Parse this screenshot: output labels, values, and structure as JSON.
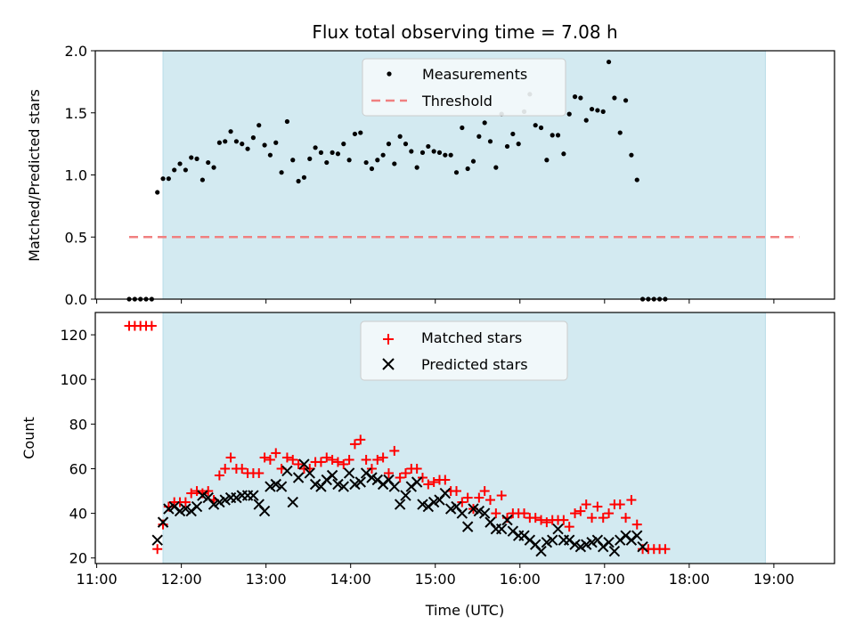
{
  "chart_data": {
    "type": "scatter",
    "title": "Flux total observing time = 7.08 h",
    "xlabel": "Time (UTC)",
    "x_ticks": [
      "11:00",
      "12:00",
      "13:00",
      "14:00",
      "15:00",
      "16:00",
      "17:00",
      "18:00",
      "19:00"
    ],
    "xlim": [
      "10:59",
      "19:43"
    ],
    "observing_window": [
      "11:47",
      "18:54"
    ],
    "colors": {
      "window": "#d3eaf1",
      "matched": "#ff0000",
      "predicted": "#000000",
      "threshold": "#f08080",
      "measure": "#000000"
    },
    "panels": [
      {
        "ylabel": "Matched/Predicted stars",
        "ylim": [
          0,
          2.0
        ],
        "y_ticks": [
          "0.0",
          "0.5",
          "1.0",
          "1.5",
          "2.0"
        ],
        "legend": [
          "Measurements",
          "Threshold"
        ],
        "threshold": {
          "value": 0.5,
          "x_range": [
            "11:23",
            "19:18"
          ]
        },
        "series": [
          {
            "name": "Measurements",
            "x_start": "11:23",
            "x_step_min": 4,
            "values": [
              0,
              0,
              0,
              0,
              0,
              0.86,
              0.97,
              0.97,
              1.04,
              1.09,
              1.04,
              1.14,
              1.13,
              0.96,
              1.1,
              1.06,
              1.26,
              1.27,
              1.35,
              1.27,
              1.25,
              1.21,
              1.3,
              1.4,
              1.24,
              1.16,
              1.26,
              1.02,
              1.43,
              1.12,
              0.95,
              0.98,
              1.13,
              1.22,
              1.18,
              1.1,
              1.18,
              1.17,
              1.25,
              1.12,
              1.33,
              1.34,
              1.1,
              1.05,
              1.12,
              1.16,
              1.25,
              1.09,
              1.31,
              1.25,
              1.19,
              1.06,
              1.18,
              1.23,
              1.19,
              1.18,
              1.16,
              1.16,
              1.02,
              1.38,
              1.05,
              1.11,
              1.31,
              1.42,
              1.27,
              1.06,
              1.49,
              1.23,
              1.33,
              1.25,
              1.51,
              1.65,
              1.4,
              1.38,
              1.12,
              1.32,
              1.32,
              1.17,
              1.49,
              1.63,
              1.62,
              1.44,
              1.53,
              1.52,
              1.51,
              1.91,
              1.62,
              1.34,
              1.6,
              1.16,
              0.96,
              0,
              0,
              0,
              0,
              0
            ]
          }
        ]
      },
      {
        "ylabel": "Count",
        "ylim": [
          17.5,
          130
        ],
        "y_ticks": [
          "20",
          "40",
          "60",
          "80",
          "100",
          "120"
        ],
        "legend": [
          "Matched stars",
          "Predicted stars"
        ],
        "series": [
          {
            "name": "Matched stars",
            "x_start": "11:23",
            "x_step_min": 4,
            "values": [
              124,
              124,
              124,
              124,
              124,
              24,
              35,
              43,
              45,
              45,
              45,
              49,
              50,
              49,
              50,
              46,
              57,
              60,
              65,
              60,
              60,
              58,
              58,
              58,
              65,
              64,
              67,
              60,
              65,
              64,
              62,
              60,
              60,
              63,
              63,
              65,
              64,
              63,
              62,
              64,
              71,
              73,
              64,
              60,
              64,
              65,
              58,
              68,
              56,
              58,
              60,
              60,
              56,
              53,
              54,
              55,
              55,
              50,
              50,
              45,
              47,
              42,
              47,
              50,
              46,
              40,
              48,
              38,
              40,
              40,
              40,
              38,
              38,
              37,
              36,
              37,
              37,
              37,
              34,
              40,
              41,
              44,
              38,
              43,
              38,
              40,
              44,
              44,
              38,
              46,
              35,
              24,
              24,
              24,
              24,
              24
            ]
          },
          {
            "name": "Predicted stars",
            "x_start": "11:23",
            "x_step_min": 4,
            "null_before": 5,
            "null_after": 90,
            "values": [
              null,
              null,
              null,
              null,
              null,
              28,
              36,
              42,
              43,
              41,
              42,
              41,
              43,
              48,
              47,
              44,
              45,
              46,
              47,
              47,
              48,
              48,
              48,
              44,
              41,
              52,
              53,
              52,
              59,
              45,
              56,
              62,
              58,
              53,
              52,
              55,
              57,
              53,
              52,
              58,
              53,
              54,
              58,
              56,
              55,
              53,
              55,
              52,
              44,
              48,
              52,
              54,
              44,
              43,
              45,
              46,
              49,
              42,
              43,
              40,
              34,
              42,
              41,
              40,
              36,
              33,
              33,
              37,
              32,
              30,
              30,
              28,
              26,
              23,
              27,
              28,
              33,
              28,
              28,
              26,
              25,
              26,
              27,
              28,
              25,
              27,
              23,
              28,
              30,
              28,
              30,
              25,
              null,
              null,
              null,
              null
            ]
          }
        ]
      }
    ]
  }
}
